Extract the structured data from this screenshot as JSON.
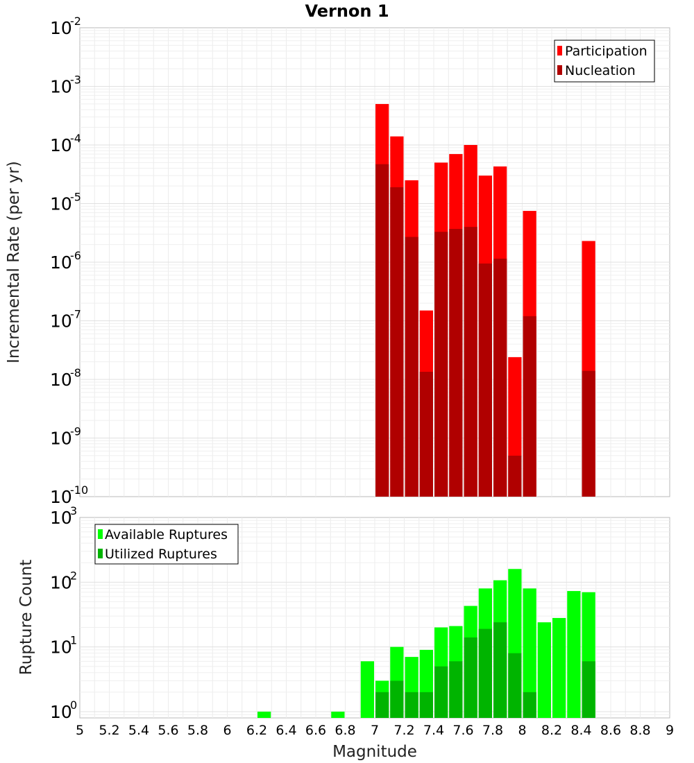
{
  "title": "Vernon 1",
  "xlabel": "Magnitude",
  "x_ticks": [
    "5",
    "5.2",
    "5.4",
    "5.6",
    "5.8",
    "6",
    "6.2",
    "6.4",
    "6.6",
    "6.8",
    "7",
    "7.2",
    "7.4",
    "7.6",
    "7.8",
    "8",
    "8.2",
    "8.4",
    "8.6",
    "8.8",
    "9"
  ],
  "chart_data": [
    {
      "type": "bar",
      "ylabel": "Incremental Rate (per yr)",
      "yscale": "log",
      "ylim": [
        1e-10,
        0.01
      ],
      "xlim": [
        5,
        9
      ],
      "y_tick_bases": [
        "10",
        "10",
        "10",
        "10",
        "10",
        "10",
        "10",
        "10",
        "10"
      ],
      "y_tick_exponents": [
        "-10",
        "-9",
        "-8",
        "-7",
        "-6",
        "-5",
        "-4",
        "-3",
        "-2"
      ],
      "legend_position": "top-right",
      "colors": {
        "Participation": "#ff0000",
        "Nucleation": "#b00000"
      },
      "x": [
        7.05,
        7.15,
        7.25,
        7.35,
        7.45,
        7.55,
        7.65,
        7.75,
        7.85,
        7.95,
        8.05,
        8.45
      ],
      "series": [
        {
          "name": "Participation",
          "values": [
            0.0005,
            0.00014,
            2.5e-05,
            1.5e-07,
            5e-05,
            7e-05,
            0.0001,
            3e-05,
            4.3e-05,
            2.4e-08,
            7.5e-06,
            2.3e-06
          ]
        },
        {
          "name": "Nucleation",
          "values": [
            4.7e-05,
            1.9e-05,
            2.7e-06,
            1.35e-08,
            3.3e-06,
            3.7e-06,
            4e-06,
            9.5e-07,
            1.15e-06,
            5e-10,
            1.2e-07,
            1.4e-08
          ]
        }
      ]
    },
    {
      "type": "bar",
      "ylabel": "Rupture Count",
      "yscale": "log",
      "ylim": [
        0.8,
        1000
      ],
      "xlim": [
        5,
        9
      ],
      "y_tick_bases": [
        "10",
        "10",
        "10",
        "10"
      ],
      "y_tick_exponents": [
        "0",
        "1",
        "2",
        "3"
      ],
      "legend_position": "top-left",
      "colors": {
        "Available Ruptures": "#00ff00",
        "Utilized Ruptures": "#00b400"
      },
      "x": [
        6.25,
        6.75,
        6.95,
        7.05,
        7.15,
        7.25,
        7.35,
        7.45,
        7.55,
        7.65,
        7.75,
        7.85,
        7.95,
        8.05,
        8.15,
        8.25,
        8.35,
        8.45
      ],
      "series": [
        {
          "name": "Available Ruptures",
          "values": [
            1,
            1,
            6,
            3,
            10,
            7,
            9,
            20,
            21,
            43,
            80,
            107,
            160,
            80,
            24,
            28,
            73,
            70
          ]
        },
        {
          "name": "Utilized Ruptures",
          "values": [
            0,
            0,
            0,
            2,
            3,
            2,
            2,
            5,
            6,
            14,
            19,
            24,
            8,
            2,
            0,
            0,
            0,
            6
          ]
        }
      ]
    }
  ]
}
